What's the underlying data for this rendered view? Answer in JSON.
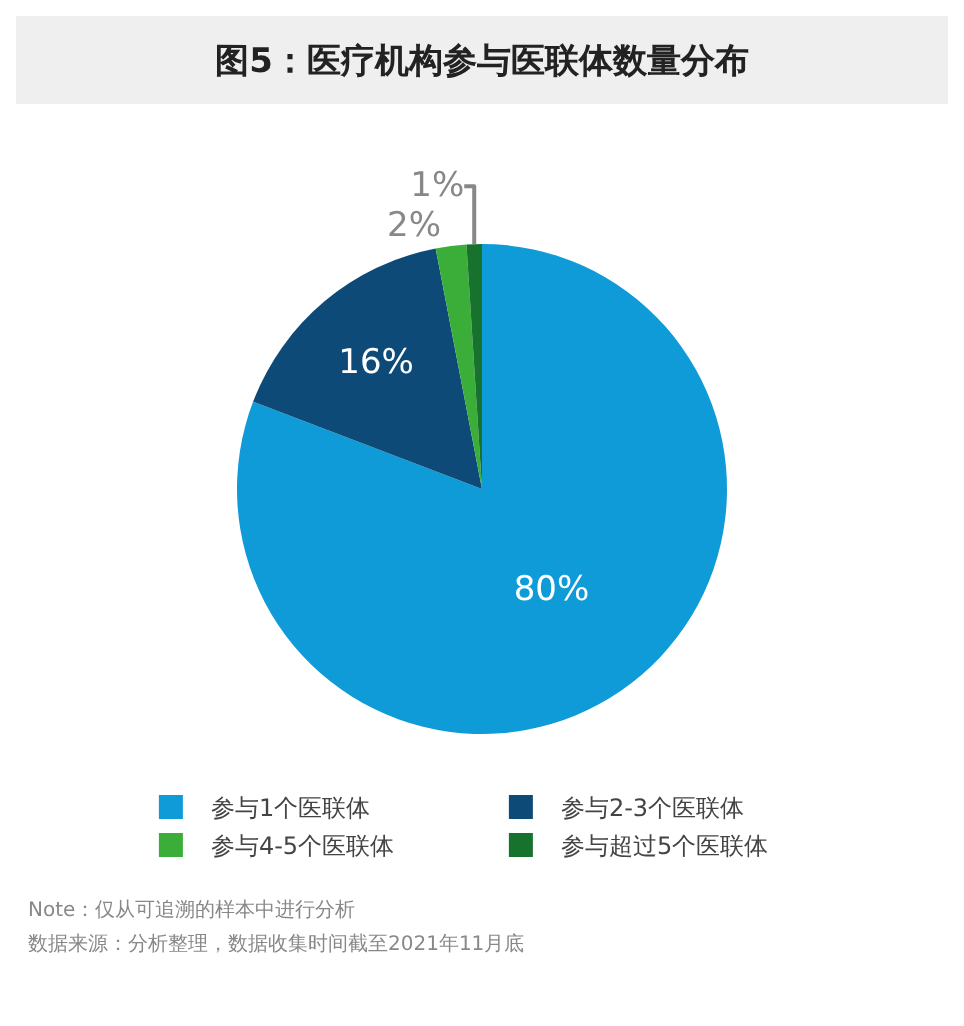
{
  "chart_data": {
    "type": "pie",
    "title": "图5：医疗机构参与医联体数量分布",
    "categories": [
      "参与1个医联体",
      "参与2-3个医联体",
      "参与4-5个医联体",
      "参与超过5个医联体"
    ],
    "values": [
      80,
      16,
      2,
      1
    ],
    "colors": [
      "#0f9bd7",
      "#0d4a78",
      "#3bae3a",
      "#16722c"
    ],
    "value_labels": [
      "80%",
      "16%",
      "2%",
      "1%"
    ],
    "legend": "bottom",
    "annotations": [
      "Note：仅从可追溯的样本中进行分析",
      "数据来源：分析整理，数据收集时间截至2021年11月底"
    ]
  }
}
